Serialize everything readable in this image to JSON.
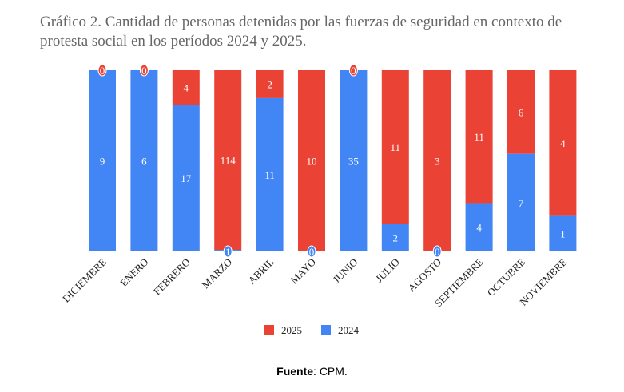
{
  "chart_data": {
    "type": "bar",
    "stacked": "percent",
    "title": "Gráfico 2. Cantidad de personas detenidas por las fuerzas de seguridad en contexto de protesta social en los períodos 2024 y 2025.",
    "categories": [
      "DICIEMBRE",
      "ENERO",
      "FEBRERO",
      "MARZO",
      "ABRIL",
      "MAYO",
      "JUNIO",
      "JULIO",
      "AGOSTO",
      "SEPTIEMBRE",
      "OCTUBRE",
      "NOVIEMBRE"
    ],
    "series": [
      {
        "name": "2024",
        "color": "#4285f4",
        "values": [
          9,
          6,
          17,
          1,
          11,
          0,
          35,
          2,
          0,
          4,
          7,
          1
        ]
      },
      {
        "name": "2025",
        "color": "#ea4335",
        "values": [
          0,
          0,
          4,
          114,
          2,
          10,
          0,
          11,
          3,
          11,
          6,
          4
        ]
      }
    ],
    "legend": [
      "2025",
      "2024"
    ],
    "legend_position": "bottom",
    "grid": false
  },
  "source": {
    "label": "Fuente",
    "text": ": CPM."
  }
}
